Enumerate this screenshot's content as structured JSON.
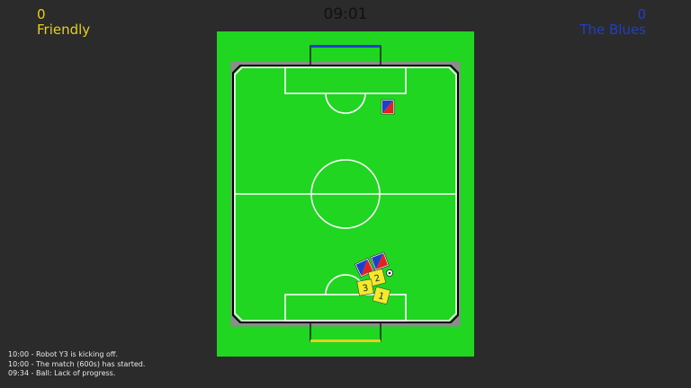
{
  "scoreboard": {
    "left_team": {
      "score": "0",
      "name": "Friendly",
      "color": "#e6cf1e"
    },
    "right_team": {
      "score": "0",
      "name": "The Blues",
      "color": "#1f3fc8"
    },
    "clock": "09:01"
  },
  "log": [
    "10:00 - Robot Y3 is kicking off.",
    "10:00 - The match (600s) has started.",
    "09:34 - Ball: Lack of progress."
  ],
  "field": {
    "grass_color": "#21d621",
    "top_goal_color": "#1f3fc8",
    "bottom_goal_color": "#e6cf1e"
  },
  "robots": [
    {
      "team": "blue",
      "label": "",
      "icon": "red-blue-robot"
    },
    {
      "team": "blue",
      "label": "",
      "icon": "red-blue-robot"
    },
    {
      "team": "blue",
      "label": "",
      "icon": "red-blue-robot"
    },
    {
      "team": "yellow",
      "label": "2",
      "icon": "yellow-robot"
    },
    {
      "team": "yellow",
      "label": "3",
      "icon": "yellow-robot"
    },
    {
      "team": "yellow",
      "label": "1",
      "icon": "yellow-robot"
    }
  ],
  "ball": {
    "icon": "soccer-ball"
  }
}
